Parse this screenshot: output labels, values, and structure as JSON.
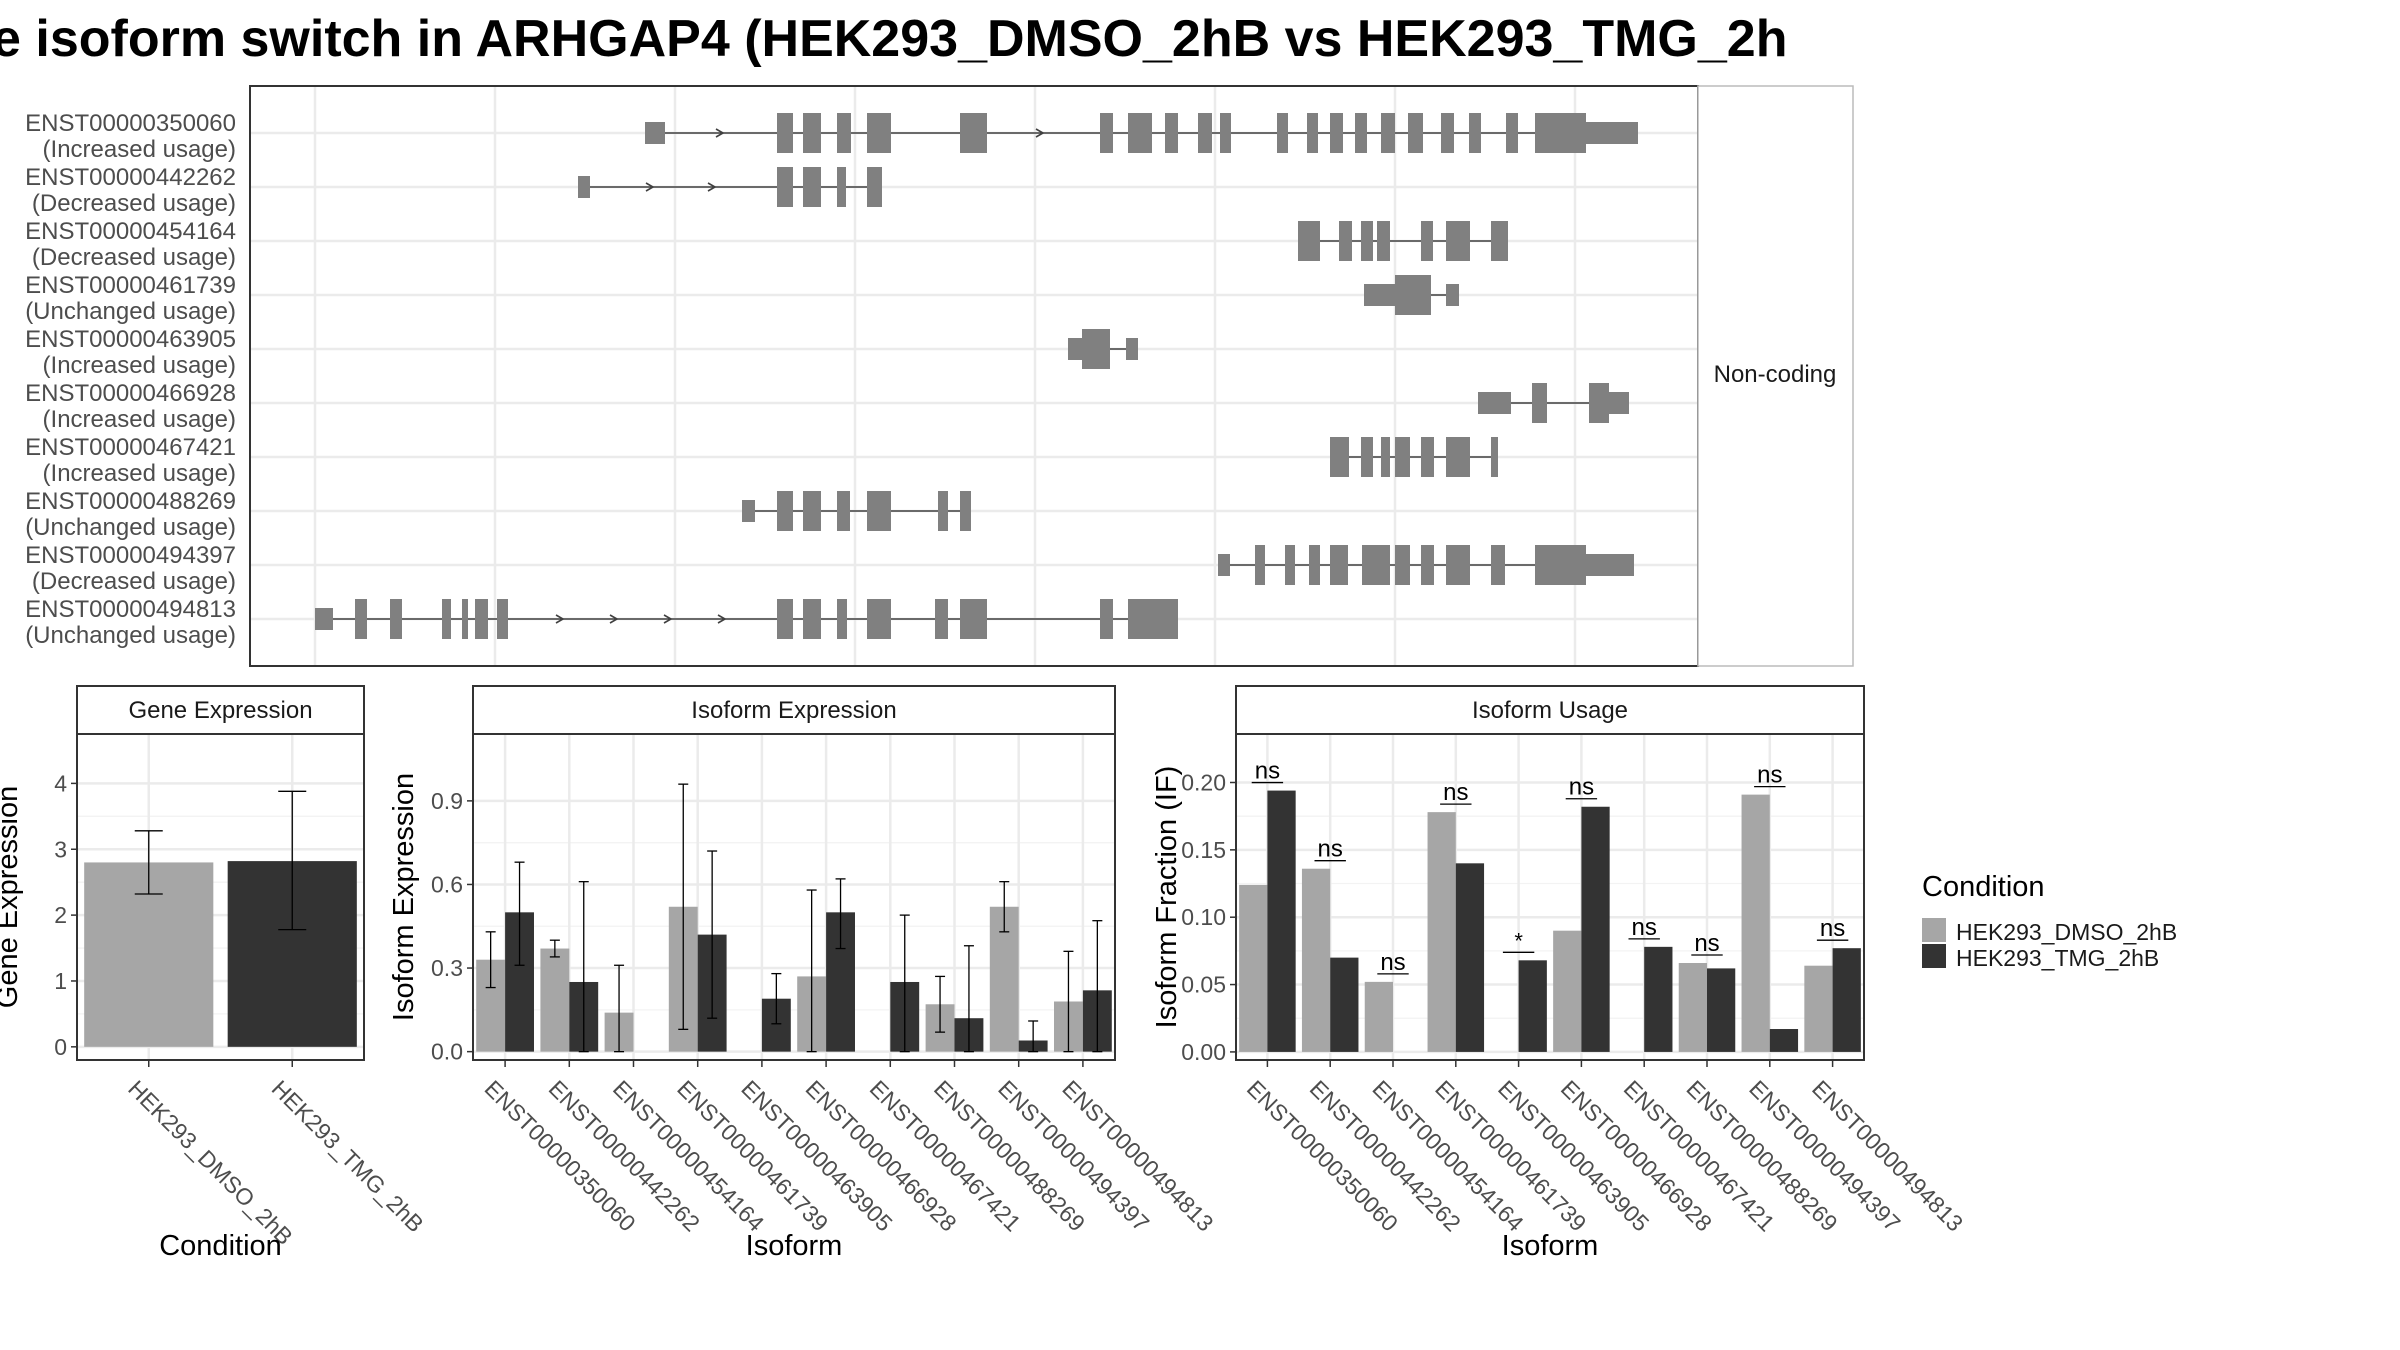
{
  "title": "e isoform switch in ARHGAP4 (HEK293_DMSO_2hB vs HEK293_TMG_2h",
  "colors": {
    "dmso": "#a6a6a6",
    "tmg": "#333333",
    "exon": "#808080",
    "grid": "#ebebeb",
    "panel_border": "#333333",
    "strip_fill": "#ffffff"
  },
  "legend": {
    "title": "Condition",
    "items": [
      "HEK293_DMSO_2hB",
      "HEK293_TMG_2hB"
    ]
  },
  "structure": {
    "strip_label": "Non-coding",
    "transcripts": [
      {
        "id": "ENST00000350060",
        "usage": "(Increased usage)"
      },
      {
        "id": "ENST00000442262",
        "usage": "(Decreased usage)"
      },
      {
        "id": "ENST00000454164",
        "usage": "(Decreased usage)"
      },
      {
        "id": "ENST00000461739",
        "usage": "(Unchanged usage)"
      },
      {
        "id": "ENST00000463905",
        "usage": "(Increased usage)"
      },
      {
        "id": "ENST00000466928",
        "usage": "(Increased usage)"
      },
      {
        "id": "ENST00000467421",
        "usage": "(Increased usage)"
      },
      {
        "id": "ENST00000488269",
        "usage": "(Unchanged usage)"
      },
      {
        "id": "ENST00000494397",
        "usage": "(Decreased usage)"
      },
      {
        "id": "ENST00000494813",
        "usage": "(Unchanged usage)"
      }
    ]
  },
  "chart_data": [
    {
      "type": "bar",
      "title": "Gene Expression",
      "xlabel": "Condition",
      "ylabel": "Gene Expression",
      "categories": [
        "HEK293_DMSO_2hB",
        "HEK293_TMG_2hB"
      ],
      "values": [
        2.8,
        2.82
      ],
      "error_low": [
        2.32,
        1.78
      ],
      "error_high": [
        3.28,
        3.88
      ],
      "ylim": [
        -0.2,
        4.75
      ],
      "yticks": [
        0,
        1,
        2,
        3,
        4
      ],
      "ytick_labels": [
        "0",
        "1",
        "2",
        "3",
        "4"
      ]
    },
    {
      "type": "bar",
      "title": "Isoform Expression",
      "xlabel": "Isoform",
      "ylabel": "Isoform Expression",
      "categories": [
        "ENST00000350060",
        "ENST00000442262",
        "ENST00000454164",
        "ENST00000461739",
        "ENST00000463905",
        "ENST00000466928",
        "ENST00000467421",
        "ENST00000488269",
        "ENST00000494397",
        "ENST00000494813"
      ],
      "series": [
        {
          "name": "HEK293_DMSO_2hB",
          "values": [
            0.33,
            0.37,
            0.14,
            0.52,
            0.0,
            0.27,
            0.0,
            0.17,
            0.52,
            0.18
          ],
          "error_low": [
            0.23,
            0.34,
            0.0,
            0.08,
            null,
            0.0,
            null,
            0.07,
            0.43,
            0.0
          ],
          "error_high": [
            0.43,
            0.4,
            0.31,
            0.96,
            null,
            0.58,
            null,
            0.27,
            0.61,
            0.36
          ]
        },
        {
          "name": "HEK293_TMG_2hB",
          "values": [
            0.5,
            0.25,
            0.0,
            0.42,
            0.19,
            0.5,
            0.25,
            0.12,
            0.04,
            0.22
          ],
          "error_low": [
            0.31,
            0.0,
            null,
            0.12,
            0.1,
            0.37,
            0.0,
            0.0,
            0.0,
            0.0
          ],
          "error_high": [
            0.68,
            0.61,
            null,
            0.72,
            0.28,
            0.62,
            0.49,
            0.38,
            0.11,
            0.47
          ]
        }
      ],
      "ylim": [
        -0.03,
        1.14
      ],
      "yticks": [
        0,
        0.3,
        0.6,
        0.9
      ],
      "ytick_labels": [
        "0.0",
        "0.3",
        "0.6",
        "0.9"
      ]
    },
    {
      "type": "bar",
      "title": "Isoform Usage",
      "xlabel": "Isoform",
      "ylabel": "Isoform Fraction (IF)",
      "categories": [
        "ENST00000350060",
        "ENST00000442262",
        "ENST00000454164",
        "ENST00000461739",
        "ENST00000463905",
        "ENST00000466928",
        "ENST00000467421",
        "ENST00000488269",
        "ENST00000494397",
        "ENST00000494813"
      ],
      "series": [
        {
          "name": "HEK293_DMSO_2hB",
          "values": [
            0.124,
            0.136,
            0.052,
            0.178,
            0.0,
            0.09,
            0.0,
            0.066,
            0.191,
            0.064
          ]
        },
        {
          "name": "HEK293_TMG_2hB",
          "values": [
            0.194,
            0.07,
            0.0,
            0.14,
            0.068,
            0.182,
            0.078,
            0.062,
            0.017,
            0.077
          ]
        }
      ],
      "significance": [
        "ns",
        "ns",
        "ns",
        "ns",
        "*",
        "ns",
        "ns",
        "ns",
        "ns",
        "ns"
      ],
      "ylim": [
        -0.006,
        0.236
      ],
      "yticks": [
        0,
        0.05,
        0.1,
        0.15,
        0.2
      ],
      "ytick_labels": [
        "0.00",
        "0.05",
        "0.10",
        "0.15",
        "0.20"
      ]
    }
  ]
}
